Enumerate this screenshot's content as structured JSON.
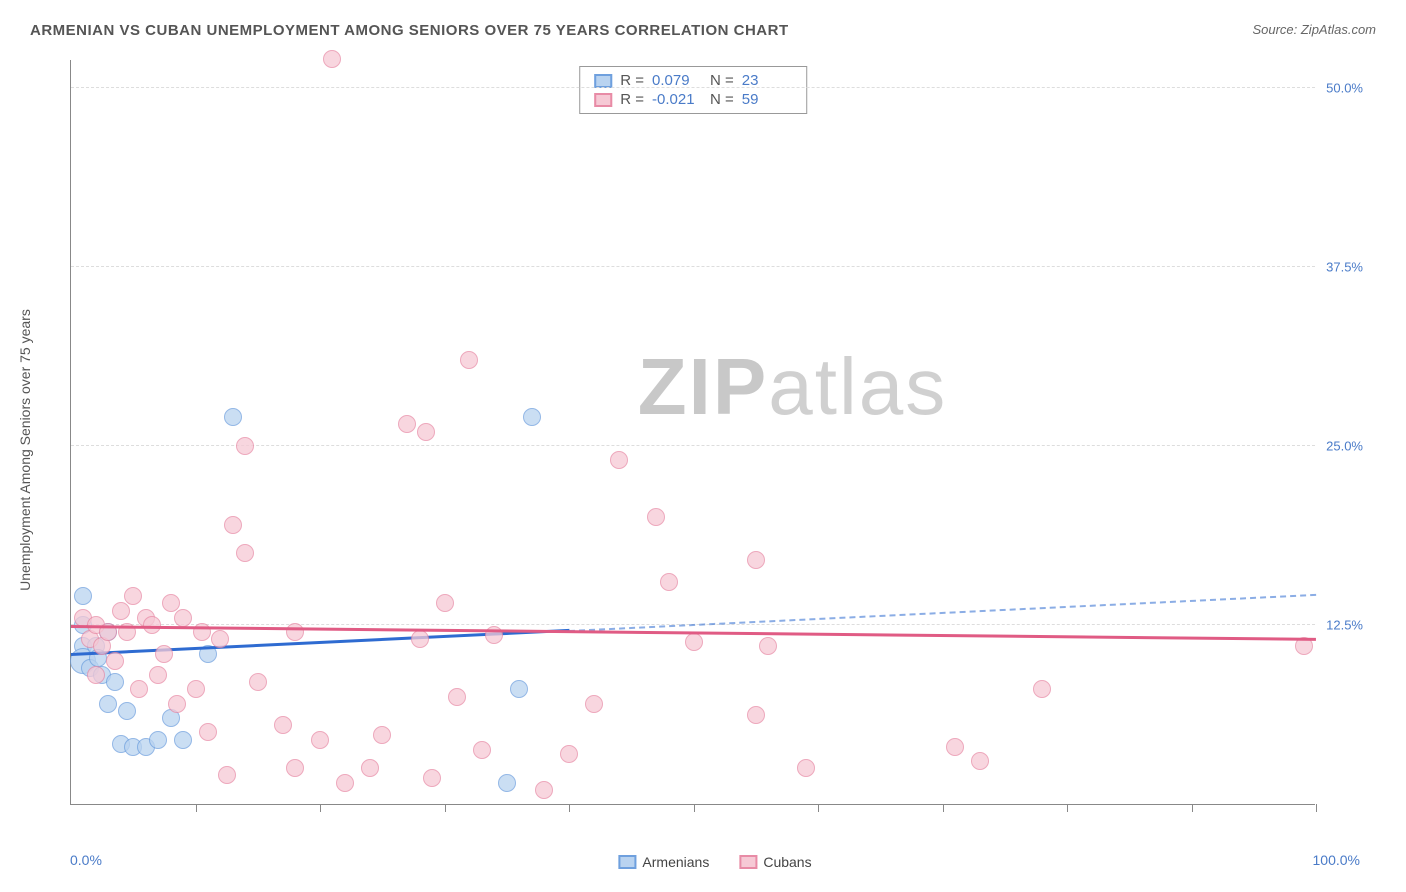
{
  "title": "ARMENIAN VS CUBAN UNEMPLOYMENT AMONG SENIORS OVER 75 YEARS CORRELATION CHART",
  "source": "Source: ZipAtlas.com",
  "watermark_bold": "ZIP",
  "watermark_rest": "atlas",
  "ylabel": "Unemployment Among Seniors over 75 years",
  "chart": {
    "type": "scatter-correlation",
    "background_color": "#ffffff",
    "grid_color": "#dddddd",
    "grid_dash": "dashed",
    "axis_color": "#888888",
    "xlim": [
      0,
      100
    ],
    "ylim": [
      0,
      52
    ],
    "x_min_label": "0.0%",
    "x_max_label": "100.0%",
    "xtick_percents": [
      10,
      20,
      30,
      40,
      50,
      60,
      70,
      80,
      90,
      100
    ],
    "yticks": [
      {
        "v": 12.5,
        "label": "12.5%"
      },
      {
        "v": 25.0,
        "label": "25.0%"
      },
      {
        "v": 37.5,
        "label": "37.5%"
      },
      {
        "v": 50.0,
        "label": "50.0%"
      }
    ],
    "series": [
      {
        "name": "Armenians",
        "fill": "#b9d3f0",
        "stroke": "#6fa0de",
        "trend_color": "#2e6bd1",
        "marker_radius": 9,
        "stat_R_label": "R =",
        "stat_R": "0.079",
        "stat_N_label": "N =",
        "stat_N": "23",
        "trend": {
          "x0": 0,
          "y0": 10.3,
          "x_solid_end": 40,
          "x1": 100,
          "y1": 14.5
        },
        "points": [
          {
            "x": 1,
            "y": 14.5
          },
          {
            "x": 1,
            "y": 12.5
          },
          {
            "x": 1,
            "y": 11.0
          },
          {
            "x": 1,
            "y": 10.0,
            "r": 13
          },
          {
            "x": 1.5,
            "y": 9.5
          },
          {
            "x": 2,
            "y": 11
          },
          {
            "x": 2.2,
            "y": 10.2
          },
          {
            "x": 2.5,
            "y": 9
          },
          {
            "x": 3,
            "y": 12
          },
          {
            "x": 3,
            "y": 7
          },
          {
            "x": 3.5,
            "y": 8.5
          },
          {
            "x": 4,
            "y": 4.2
          },
          {
            "x": 4.5,
            "y": 6.5
          },
          {
            "x": 5,
            "y": 4
          },
          {
            "x": 6,
            "y": 4
          },
          {
            "x": 7,
            "y": 4.5
          },
          {
            "x": 8,
            "y": 6
          },
          {
            "x": 9,
            "y": 4.5
          },
          {
            "x": 11,
            "y": 10.5
          },
          {
            "x": 13,
            "y": 27
          },
          {
            "x": 36,
            "y": 8
          },
          {
            "x": 37,
            "y": 27
          },
          {
            "x": 35,
            "y": 1.5
          }
        ]
      },
      {
        "name": "Cubans",
        "fill": "#f6c9d5",
        "stroke": "#e88ba6",
        "trend_color": "#e05b84",
        "marker_radius": 9,
        "stat_R_label": "R =",
        "stat_R": "-0.021",
        "stat_N_label": "N =",
        "stat_N": "59",
        "trend": {
          "x0": 0,
          "y0": 12.3,
          "x_solid_end": 100,
          "x1": 100,
          "y1": 11.4
        },
        "points": [
          {
            "x": 1,
            "y": 13
          },
          {
            "x": 1.5,
            "y": 11.5
          },
          {
            "x": 2,
            "y": 12.5
          },
          {
            "x": 2.5,
            "y": 11
          },
          {
            "x": 2,
            "y": 9
          },
          {
            "x": 3,
            "y": 12
          },
          {
            "x": 3.5,
            "y": 10
          },
          {
            "x": 4,
            "y": 13.5
          },
          {
            "x": 4.5,
            "y": 12
          },
          {
            "x": 5,
            "y": 14.5
          },
          {
            "x": 5.5,
            "y": 8
          },
          {
            "x": 6,
            "y": 13
          },
          {
            "x": 6.5,
            "y": 12.5
          },
          {
            "x": 7,
            "y": 9
          },
          {
            "x": 7.5,
            "y": 10.5
          },
          {
            "x": 8,
            "y": 14
          },
          {
            "x": 8.5,
            "y": 7
          },
          {
            "x": 9,
            "y": 13
          },
          {
            "x": 10,
            "y": 8
          },
          {
            "x": 10.5,
            "y": 12
          },
          {
            "x": 11,
            "y": 5
          },
          {
            "x": 12,
            "y": 11.5
          },
          {
            "x": 12.5,
            "y": 2
          },
          {
            "x": 13,
            "y": 19.5
          },
          {
            "x": 14,
            "y": 25
          },
          {
            "x": 14,
            "y": 17.5
          },
          {
            "x": 15,
            "y": 8.5
          },
          {
            "x": 17,
            "y": 5.5
          },
          {
            "x": 18,
            "y": 12
          },
          {
            "x": 18,
            "y": 2.5
          },
          {
            "x": 20,
            "y": 4.5
          },
          {
            "x": 21,
            "y": 52
          },
          {
            "x": 22,
            "y": 1.5
          },
          {
            "x": 24,
            "y": 2.5
          },
          {
            "x": 25,
            "y": 4.8
          },
          {
            "x": 27,
            "y": 26.5
          },
          {
            "x": 28,
            "y": 11.5
          },
          {
            "x": 28.5,
            "y": 26
          },
          {
            "x": 29,
            "y": 1.8
          },
          {
            "x": 30,
            "y": 14
          },
          {
            "x": 31,
            "y": 7.5
          },
          {
            "x": 32,
            "y": 31
          },
          {
            "x": 33,
            "y": 3.8
          },
          {
            "x": 34,
            "y": 11.8
          },
          {
            "x": 38,
            "y": 1
          },
          {
            "x": 40,
            "y": 3.5
          },
          {
            "x": 42,
            "y": 7
          },
          {
            "x": 44,
            "y": 24
          },
          {
            "x": 47,
            "y": 20
          },
          {
            "x": 48,
            "y": 15.5
          },
          {
            "x": 50,
            "y": 11.3
          },
          {
            "x": 55,
            "y": 6.2
          },
          {
            "x": 55,
            "y": 17
          },
          {
            "x": 56,
            "y": 11
          },
          {
            "x": 59,
            "y": 2.5
          },
          {
            "x": 71,
            "y": 4
          },
          {
            "x": 73,
            "y": 3
          },
          {
            "x": 78,
            "y": 8
          },
          {
            "x": 99,
            "y": 11
          }
        ]
      }
    ]
  }
}
